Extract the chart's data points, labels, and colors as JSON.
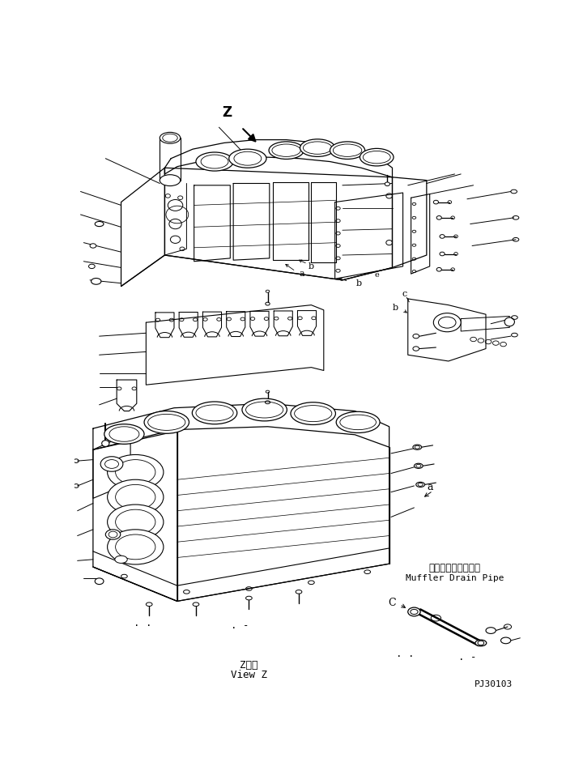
{
  "bg_color": "#ffffff",
  "line_color": "#000000",
  "fig_width": 7.2,
  "fig_height": 9.57,
  "dpi": 100,
  "bottom_right_text": "PJ30103",
  "muffler_text_jp": "マフラドレンパイプ",
  "muffler_text_en": "Muffler Drain Pipe",
  "view_z_jp": "Z　視",
  "view_z_en": "View Z"
}
